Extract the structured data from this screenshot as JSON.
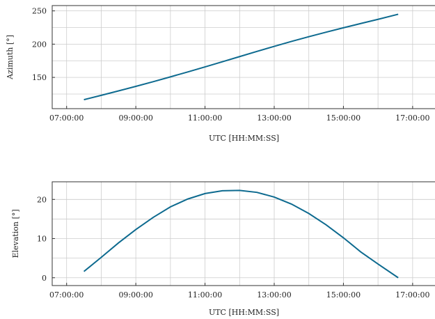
{
  "chart_data": [
    {
      "type": "line",
      "xlabel": "UTC [HH:MM:SS]",
      "ylabel": "Azimuth [°]",
      "x_ticks": [
        "07:00:00",
        "09:00:00",
        "11:00:00",
        "13:00:00",
        "15:00:00",
        "17:00:00"
      ],
      "y_ticks": [
        150,
        200,
        250
      ],
      "xlim": [
        "06:35:00",
        "17:40:00"
      ],
      "ylim": [
        103,
        258
      ],
      "grid": true,
      "series": [
        {
          "color": "#0d6a8f",
          "x": [
            "07:30:00",
            "08:00:00",
            "08:30:00",
            "09:00:00",
            "09:30:00",
            "10:00:00",
            "10:30:00",
            "11:00:00",
            "11:30:00",
            "12:00:00",
            "12:30:00",
            "13:00:00",
            "13:30:00",
            "14:00:00",
            "14:30:00",
            "15:00:00",
            "15:30:00",
            "16:00:00",
            "16:35:00"
          ],
          "y": [
            116.5,
            123.0,
            129.7,
            136.5,
            143.5,
            150.8,
            158.2,
            165.8,
            173.5,
            181.3,
            189.1,
            196.7,
            204.1,
            211.2,
            218.0,
            224.6,
            231.0,
            237.3,
            245.0
          ]
        }
      ]
    },
    {
      "type": "line",
      "xlabel": "UTC [HH:MM:SS]",
      "ylabel": "Elevation [°]",
      "x_ticks": [
        "07:00:00",
        "09:00:00",
        "11:00:00",
        "13:00:00",
        "15:00:00",
        "17:00:00"
      ],
      "y_ticks": [
        0,
        10,
        20
      ],
      "xlim": [
        "06:35:00",
        "17:40:00"
      ],
      "ylim": [
        -2,
        24.5
      ],
      "grid": true,
      "series": [
        {
          "color": "#0d6a8f",
          "x": [
            "07:30:00",
            "08:00:00",
            "08:30:00",
            "09:00:00",
            "09:30:00",
            "10:00:00",
            "10:30:00",
            "11:00:00",
            "11:30:00",
            "12:00:00",
            "12:30:00",
            "13:00:00",
            "13:30:00",
            "14:00:00",
            "14:30:00",
            "15:00:00",
            "15:30:00",
            "16:00:00",
            "16:35:00"
          ],
          "y": [
            1.6,
            5.2,
            8.9,
            12.3,
            15.4,
            18.1,
            20.1,
            21.5,
            22.2,
            22.3,
            21.8,
            20.6,
            18.8,
            16.4,
            13.5,
            10.2,
            6.6,
            3.5,
            0.0
          ]
        }
      ]
    }
  ]
}
